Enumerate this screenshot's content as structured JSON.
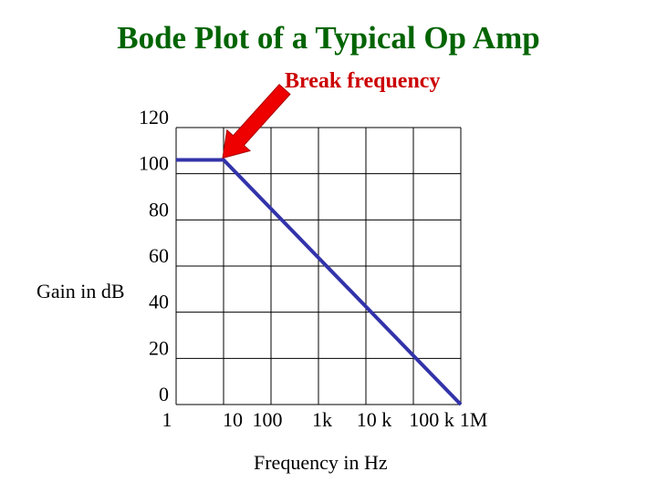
{
  "slide": {
    "title": "Bode Plot of a Typical Op Amp"
  },
  "colors": {
    "title": "#006400",
    "annotation": "#cc0000",
    "arrow": "#ee0000",
    "series": "#3333aa",
    "grid": "#000000"
  },
  "chart_data": {
    "type": "line",
    "title": "",
    "xlabel": "Frequency in Hz",
    "ylabel": "Gain in dB",
    "x_scale": "log",
    "x_tick_labels": [
      "1",
      "10",
      "100",
      "1k",
      "10 k",
      "100 k",
      "1M"
    ],
    "x_tick_values": [
      1,
      10,
      100,
      1000,
      10000,
      100000,
      1000000
    ],
    "y_tick_labels": [
      "0",
      "20",
      "40",
      "60",
      "80",
      "100",
      "120"
    ],
    "y_tick_values": [
      0,
      20,
      40,
      60,
      80,
      100,
      120
    ],
    "xlim": [
      1,
      1000000
    ],
    "ylim": [
      0,
      120
    ],
    "grid": true,
    "series": [
      {
        "x": [
          1,
          10,
          1000000
        ],
        "y": [
          106,
          106,
          0
        ]
      }
    ],
    "annotations": [
      {
        "text": "Break frequency",
        "x": 10,
        "y": 106
      }
    ]
  }
}
